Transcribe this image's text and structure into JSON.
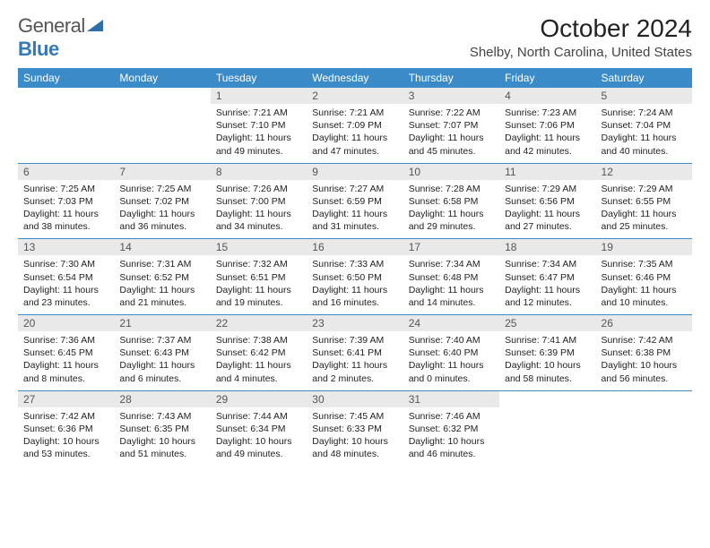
{
  "logo": {
    "text1": "General",
    "text2": "Blue"
  },
  "title": "October 2024",
  "location": "Shelby, North Carolina, United States",
  "colors": {
    "header_bg": "#3b8bc9",
    "header_fg": "#ffffff",
    "daynum_bg": "#e9e9e9",
    "rule": "#3b8bc9",
    "logo_gray": "#555555",
    "logo_blue": "#337ab7"
  },
  "day_names": [
    "Sunday",
    "Monday",
    "Tuesday",
    "Wednesday",
    "Thursday",
    "Friday",
    "Saturday"
  ],
  "weeks": [
    [
      {
        "empty": true
      },
      {
        "empty": true
      },
      {
        "n": "1",
        "sunrise": "7:21 AM",
        "sunset": "7:10 PM",
        "daylight": "11 hours and 49 minutes."
      },
      {
        "n": "2",
        "sunrise": "7:21 AM",
        "sunset": "7:09 PM",
        "daylight": "11 hours and 47 minutes."
      },
      {
        "n": "3",
        "sunrise": "7:22 AM",
        "sunset": "7:07 PM",
        "daylight": "11 hours and 45 minutes."
      },
      {
        "n": "4",
        "sunrise": "7:23 AM",
        "sunset": "7:06 PM",
        "daylight": "11 hours and 42 minutes."
      },
      {
        "n": "5",
        "sunrise": "7:24 AM",
        "sunset": "7:04 PM",
        "daylight": "11 hours and 40 minutes."
      }
    ],
    [
      {
        "n": "6",
        "sunrise": "7:25 AM",
        "sunset": "7:03 PM",
        "daylight": "11 hours and 38 minutes."
      },
      {
        "n": "7",
        "sunrise": "7:25 AM",
        "sunset": "7:02 PM",
        "daylight": "11 hours and 36 minutes."
      },
      {
        "n": "8",
        "sunrise": "7:26 AM",
        "sunset": "7:00 PM",
        "daylight": "11 hours and 34 minutes."
      },
      {
        "n": "9",
        "sunrise": "7:27 AM",
        "sunset": "6:59 PM",
        "daylight": "11 hours and 31 minutes."
      },
      {
        "n": "10",
        "sunrise": "7:28 AM",
        "sunset": "6:58 PM",
        "daylight": "11 hours and 29 minutes."
      },
      {
        "n": "11",
        "sunrise": "7:29 AM",
        "sunset": "6:56 PM",
        "daylight": "11 hours and 27 minutes."
      },
      {
        "n": "12",
        "sunrise": "7:29 AM",
        "sunset": "6:55 PM",
        "daylight": "11 hours and 25 minutes."
      }
    ],
    [
      {
        "n": "13",
        "sunrise": "7:30 AM",
        "sunset": "6:54 PM",
        "daylight": "11 hours and 23 minutes."
      },
      {
        "n": "14",
        "sunrise": "7:31 AM",
        "sunset": "6:52 PM",
        "daylight": "11 hours and 21 minutes."
      },
      {
        "n": "15",
        "sunrise": "7:32 AM",
        "sunset": "6:51 PM",
        "daylight": "11 hours and 19 minutes."
      },
      {
        "n": "16",
        "sunrise": "7:33 AM",
        "sunset": "6:50 PM",
        "daylight": "11 hours and 16 minutes."
      },
      {
        "n": "17",
        "sunrise": "7:34 AM",
        "sunset": "6:48 PM",
        "daylight": "11 hours and 14 minutes."
      },
      {
        "n": "18",
        "sunrise": "7:34 AM",
        "sunset": "6:47 PM",
        "daylight": "11 hours and 12 minutes."
      },
      {
        "n": "19",
        "sunrise": "7:35 AM",
        "sunset": "6:46 PM",
        "daylight": "11 hours and 10 minutes."
      }
    ],
    [
      {
        "n": "20",
        "sunrise": "7:36 AM",
        "sunset": "6:45 PM",
        "daylight": "11 hours and 8 minutes."
      },
      {
        "n": "21",
        "sunrise": "7:37 AM",
        "sunset": "6:43 PM",
        "daylight": "11 hours and 6 minutes."
      },
      {
        "n": "22",
        "sunrise": "7:38 AM",
        "sunset": "6:42 PM",
        "daylight": "11 hours and 4 minutes."
      },
      {
        "n": "23",
        "sunrise": "7:39 AM",
        "sunset": "6:41 PM",
        "daylight": "11 hours and 2 minutes."
      },
      {
        "n": "24",
        "sunrise": "7:40 AM",
        "sunset": "6:40 PM",
        "daylight": "11 hours and 0 minutes."
      },
      {
        "n": "25",
        "sunrise": "7:41 AM",
        "sunset": "6:39 PM",
        "daylight": "10 hours and 58 minutes."
      },
      {
        "n": "26",
        "sunrise": "7:42 AM",
        "sunset": "6:38 PM",
        "daylight": "10 hours and 56 minutes."
      }
    ],
    [
      {
        "n": "27",
        "sunrise": "7:42 AM",
        "sunset": "6:36 PM",
        "daylight": "10 hours and 53 minutes."
      },
      {
        "n": "28",
        "sunrise": "7:43 AM",
        "sunset": "6:35 PM",
        "daylight": "10 hours and 51 minutes."
      },
      {
        "n": "29",
        "sunrise": "7:44 AM",
        "sunset": "6:34 PM",
        "daylight": "10 hours and 49 minutes."
      },
      {
        "n": "30",
        "sunrise": "7:45 AM",
        "sunset": "6:33 PM",
        "daylight": "10 hours and 48 minutes."
      },
      {
        "n": "31",
        "sunrise": "7:46 AM",
        "sunset": "6:32 PM",
        "daylight": "10 hours and 46 minutes."
      },
      {
        "empty": true
      },
      {
        "empty": true
      }
    ]
  ],
  "labels": {
    "sunrise": "Sunrise:",
    "sunset": "Sunset:",
    "daylight": "Daylight:"
  }
}
